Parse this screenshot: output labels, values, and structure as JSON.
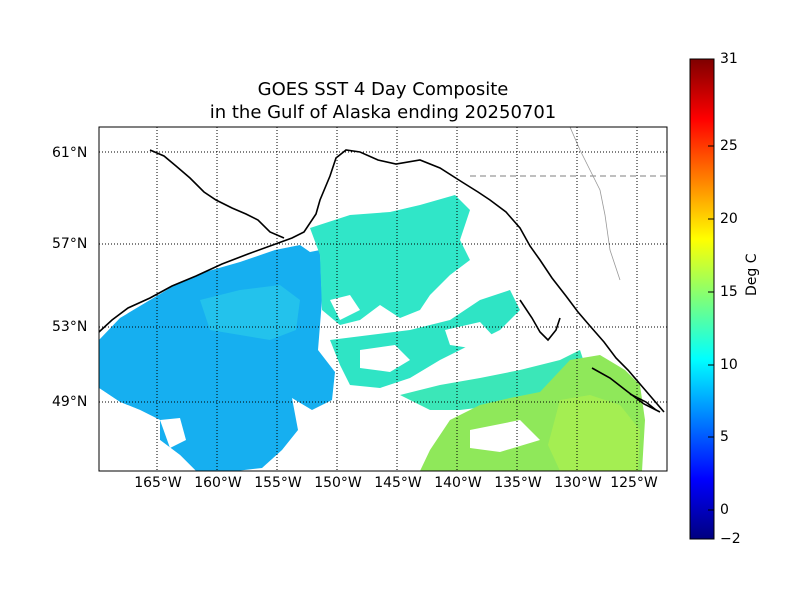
{
  "title_line1": "GOES SST 4 Day Composite",
  "title_line2": "in the Gulf of Alaska ending 20250701",
  "chart_data": {
    "type": "heatmap",
    "title": "GOES SST 4 Day Composite in the Gulf of Alaska ending 20250701",
    "lat_ticks": [
      {
        "value": 61,
        "label": "61°N"
      },
      {
        "value": 57,
        "label": "57°N"
      },
      {
        "value": 53,
        "label": "53°N"
      },
      {
        "value": 49,
        "label": "49°N"
      }
    ],
    "lon_ticks": [
      {
        "value": -165,
        "label": "165°W"
      },
      {
        "value": -160,
        "label": "160°W"
      },
      {
        "value": -155,
        "label": "155°W"
      },
      {
        "value": -150,
        "label": "150°W"
      },
      {
        "value": -145,
        "label": "145°W"
      },
      {
        "value": -140,
        "label": "140°W"
      },
      {
        "value": -135,
        "label": "135°W"
      },
      {
        "value": -130,
        "label": "130°W"
      },
      {
        "value": -125,
        "label": "125°W"
      }
    ],
    "colorbar": {
      "label": "Deg C",
      "range": [
        -2,
        31
      ],
      "ticks": [
        "31",
        "25",
        "20",
        "15",
        "10",
        "5",
        "0",
        "−2"
      ],
      "colormap": "jet"
    },
    "grid": true
  },
  "colors": {
    "ocean_west": "#15aeee",
    "ocean_mid": "#31e7c9",
    "ocean_east": "#8ee85c",
    "land_outline": "#000000"
  }
}
